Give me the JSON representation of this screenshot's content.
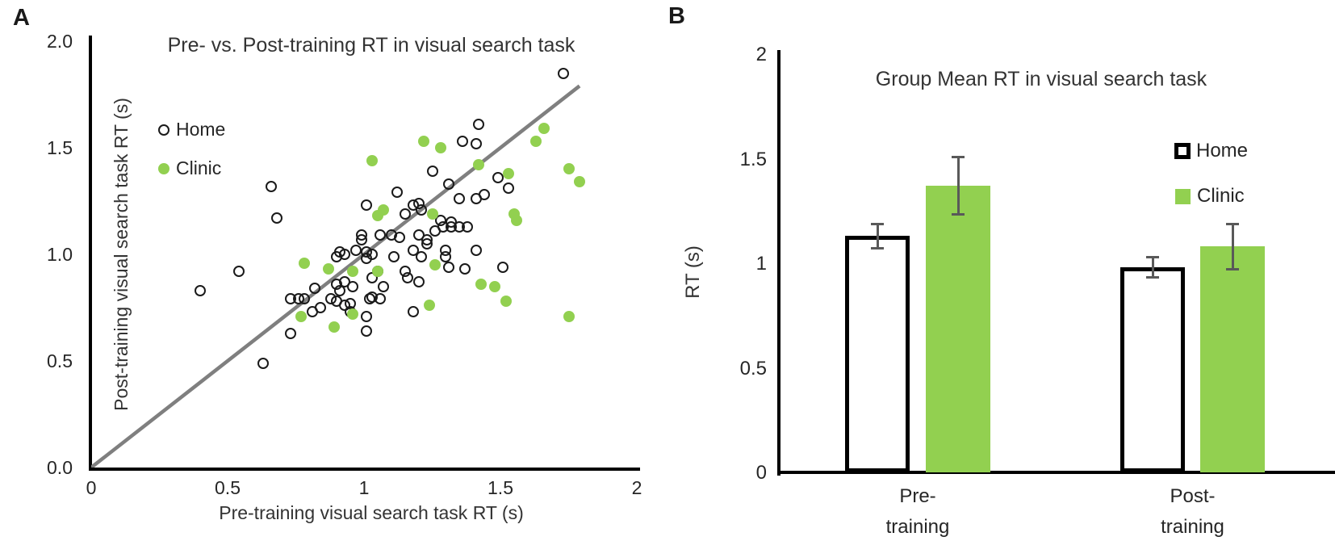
{
  "colors": {
    "clinic_green": "#92D050",
    "home_stroke": "#1a1a1a",
    "identity_line": "#7f7f7f",
    "error_bar": "#595959",
    "axis": "#000000"
  },
  "panel_a": {
    "label": "A",
    "title": "Pre- vs. Post-training RT in visual search task",
    "x_axis": {
      "title": "Pre-training visual search task RT (s)"
    },
    "y_axis": {
      "title": "Post-training visual search  task RT (s)"
    },
    "legend": {
      "home": "Home",
      "clinic": "Clinic"
    }
  },
  "panel_b": {
    "label": "B",
    "title": "Group Mean RT in visual search task",
    "y_axis": {
      "title": "RT (s)"
    },
    "legend": {
      "home": "Home",
      "clinic": "Clinic"
    }
  },
  "chart_data": [
    {
      "id": "scatter_pre_vs_post",
      "type": "scatter",
      "title": "Pre- vs. Post-training RT in visual search task",
      "xlabel": "Pre-training visual search task RT (s)",
      "ylabel": "Post-training visual search  task RT (s)",
      "xlim": [
        0,
        2
      ],
      "ylim": [
        0,
        2
      ],
      "x_ticks": [
        "0",
        "0.5",
        "1",
        "1.5",
        "2"
      ],
      "x_tick_values": [
        0,
        0.5,
        1,
        1.5,
        2
      ],
      "y_ticks": [
        "0.0",
        "0.5",
        "1.0",
        "1.5",
        "2.0"
      ],
      "y_tick_values": [
        0,
        0.5,
        1,
        1.5,
        2
      ],
      "grid": false,
      "legend_position": "upper-left-inside",
      "identity_line": {
        "x1": 0,
        "y1": 0,
        "x2": 1.79,
        "y2": 1.79,
        "color": "#7f7f7f"
      },
      "series": [
        {
          "name": "Home",
          "marker": "open-circle",
          "color": "#1a1a1a",
          "points": [
            [
              0.66,
              1.32
            ],
            [
              0.68,
              1.17
            ],
            [
              0.4,
              0.83
            ],
            [
              0.54,
              0.92
            ],
            [
              0.63,
              0.49
            ],
            [
              0.73,
              0.63
            ],
            [
              0.73,
              0.79
            ],
            [
              0.76,
              0.79
            ],
            [
              0.78,
              0.79
            ],
            [
              0.81,
              0.73
            ],
            [
              0.84,
              0.75
            ],
            [
              0.88,
              0.79
            ],
            [
              0.9,
              0.78
            ],
            [
              0.93,
              0.76
            ],
            [
              0.95,
              0.77
            ],
            [
              0.95,
              0.73
            ],
            [
              0.91,
              0.83
            ],
            [
              0.82,
              0.84
            ],
            [
              0.9,
              0.86
            ],
            [
              0.93,
              0.87
            ],
            [
              0.96,
              0.85
            ],
            [
              0.9,
              0.99
            ],
            [
              0.91,
              1.01
            ],
            [
              0.93,
              1.0
            ],
            [
              0.97,
              1.02
            ],
            [
              0.99,
              1.09
            ],
            [
              0.99,
              1.07
            ],
            [
              1.01,
              0.98
            ],
            [
              1.01,
              1.01
            ],
            [
              1.02,
              0.79
            ],
            [
              1.06,
              0.79
            ],
            [
              1.01,
              0.71
            ],
            [
              1.01,
              0.64
            ],
            [
              1.03,
              0.8
            ],
            [
              1.03,
              0.89
            ],
            [
              1.07,
              0.85
            ],
            [
              1.03,
              1.0
            ],
            [
              1.05,
              0.92
            ],
            [
              1.11,
              0.99
            ],
            [
              1.15,
              0.92
            ],
            [
              1.16,
              0.89
            ],
            [
              1.2,
              0.87
            ],
            [
              1.18,
              0.73
            ],
            [
              1.18,
              1.02
            ],
            [
              1.21,
              0.99
            ],
            [
              1.1,
              1.09
            ],
            [
              1.13,
              1.08
            ],
            [
              1.06,
              1.09
            ],
            [
              1.2,
              1.09
            ],
            [
              1.23,
              1.07
            ],
            [
              1.23,
              1.05
            ],
            [
              1.26,
              1.11
            ],
            [
              1.29,
              1.13
            ],
            [
              1.32,
              1.13
            ],
            [
              1.35,
              1.13
            ],
            [
              1.38,
              1.13
            ],
            [
              1.3,
              1.02
            ],
            [
              1.3,
              0.99
            ],
            [
              1.31,
              0.94
            ],
            [
              1.37,
              0.93
            ],
            [
              1.41,
              1.02
            ],
            [
              1.51,
              0.94
            ],
            [
              1.01,
              1.23
            ],
            [
              1.12,
              1.29
            ],
            [
              1.15,
              1.19
            ],
            [
              1.18,
              1.23
            ],
            [
              1.2,
              1.24
            ],
            [
              1.21,
              1.21
            ],
            [
              1.28,
              1.16
            ],
            [
              1.32,
              1.15
            ],
            [
              1.35,
              1.26
            ],
            [
              1.41,
              1.26
            ],
            [
              1.44,
              1.28
            ],
            [
              1.25,
              1.39
            ],
            [
              1.31,
              1.33
            ],
            [
              1.36,
              1.53
            ],
            [
              1.41,
              1.52
            ],
            [
              1.42,
              1.61
            ],
            [
              1.49,
              1.36
            ],
            [
              1.53,
              1.31
            ],
            [
              1.73,
              1.85
            ]
          ]
        },
        {
          "name": "Clinic",
          "marker": "filled-circle",
          "color": "#92D050",
          "points": [
            [
              0.77,
              0.71
            ],
            [
              0.78,
              0.96
            ],
            [
              0.87,
              0.93
            ],
            [
              0.89,
              0.66
            ],
            [
              0.96,
              0.92
            ],
            [
              0.96,
              0.72
            ],
            [
              1.03,
              1.44
            ],
            [
              1.05,
              0.92
            ],
            [
              1.05,
              1.18
            ],
            [
              1.07,
              1.21
            ],
            [
              1.22,
              1.53
            ],
            [
              1.24,
              0.76
            ],
            [
              1.25,
              1.19
            ],
            [
              1.26,
              0.95
            ],
            [
              1.28,
              1.5
            ],
            [
              1.42,
              1.42
            ],
            [
              1.43,
              0.86
            ],
            [
              1.48,
              0.85
            ],
            [
              1.52,
              0.78
            ],
            [
              1.53,
              1.38
            ],
            [
              1.55,
              1.19
            ],
            [
              1.56,
              1.16
            ],
            [
              1.63,
              1.53
            ],
            [
              1.66,
              1.59
            ],
            [
              1.75,
              1.4
            ],
            [
              1.75,
              0.71
            ],
            [
              1.79,
              1.34
            ]
          ]
        }
      ]
    },
    {
      "id": "bar_group_mean",
      "type": "bar",
      "title": "Group Mean RT in visual search task",
      "ylabel": "RT (s)",
      "ylim": [
        0,
        2
      ],
      "y_ticks": [
        "0",
        "0.5",
        "1",
        "1.5",
        "2"
      ],
      "y_tick_values": [
        0,
        0.5,
        1,
        1.5,
        2
      ],
      "grid": false,
      "legend_position": "right-inside",
      "categories": [
        "Pre-training",
        "Post-training"
      ],
      "category_lines": [
        [
          "Pre-",
          "training"
        ],
        [
          "Post-",
          "training"
        ]
      ],
      "series": [
        {
          "name": "Home",
          "fill": "#ffffff",
          "border": "#000000",
          "values": [
            1.13,
            0.98
          ],
          "errors": [
            0.06,
            0.05
          ]
        },
        {
          "name": "Clinic",
          "fill": "#92D050",
          "border": null,
          "values": [
            1.37,
            1.08
          ],
          "errors": [
            0.14,
            0.11
          ]
        }
      ]
    }
  ]
}
